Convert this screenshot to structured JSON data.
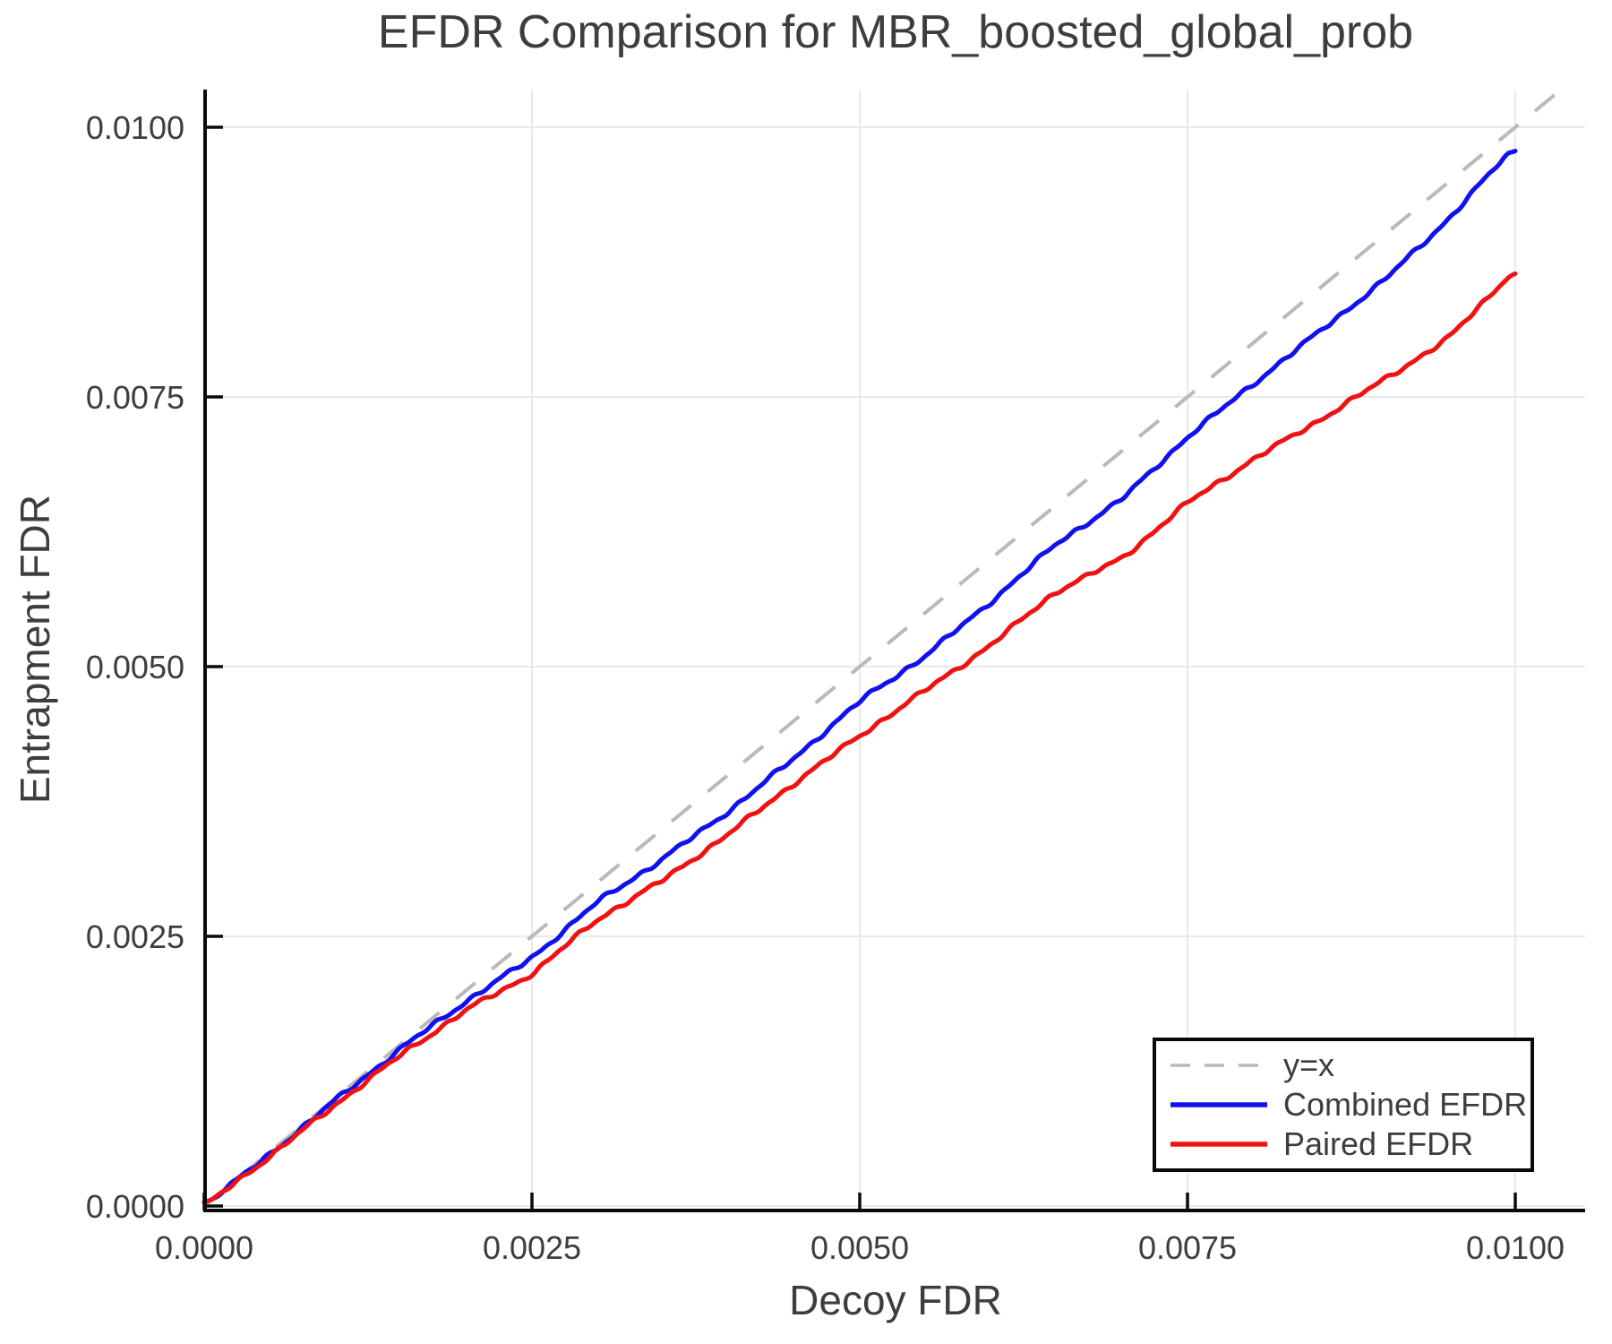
{
  "chart_data": {
    "type": "line",
    "title": "EFDR Comparison for MBR_boosted_global_prob",
    "xlabel": "Decoy FDR",
    "ylabel": "Entrapment FDR",
    "xlim": [
      0,
      0.01053
    ],
    "ylim": [
      0,
      0.01035
    ],
    "grid": true,
    "x_ticks": [
      0.0,
      0.0025,
      0.005,
      0.0075,
      0.01
    ],
    "x_tick_labels": [
      "0.0000",
      "0.0025",
      "0.0050",
      "0.0075",
      "0.0100"
    ],
    "y_ticks": [
      0.0,
      0.0025,
      0.005,
      0.0075,
      0.01
    ],
    "y_tick_labels": [
      "0.0000",
      "0.0025",
      "0.0050",
      "0.0075",
      "0.0100"
    ],
    "colors": {
      "grid": "#e9e9e9",
      "axis": "#0a0a0a",
      "text": "#3d3d3d",
      "reference": "#b9b9b9",
      "combined": "#1111ee",
      "paired": "#f01212"
    },
    "reference_line": {
      "label": "y=x",
      "style": "dashed",
      "color": "#b9b9b9",
      "from": [
        0,
        0
      ],
      "to": [
        0.01035,
        0.01035
      ]
    },
    "legend": {
      "position": "lower right",
      "entries": [
        {
          "label": "y=x",
          "color": "#b9b9b9",
          "dash": true
        },
        {
          "label": "Combined EFDR",
          "color": "#1111ee",
          "dash": false
        },
        {
          "label": "Paired EFDR",
          "color": "#f01212",
          "dash": false
        }
      ]
    },
    "series": [
      {
        "name": "Combined EFDR",
        "color": "#1111ee",
        "style": "solid",
        "x": [
          0.0,
          0.0005,
          0.001,
          0.0015,
          0.002,
          0.0025,
          0.003,
          0.0035,
          0.004,
          0.0045,
          0.005,
          0.0055,
          0.006,
          0.0065,
          0.007,
          0.0075,
          0.008,
          0.0085,
          0.009,
          0.0095,
          0.01
        ],
        "y": [
          0.0,
          0.00048,
          0.00098,
          0.00146,
          0.0019,
          0.0023,
          0.00282,
          0.00322,
          0.00366,
          0.00415,
          0.00468,
          0.0051,
          0.0056,
          0.00614,
          0.00655,
          0.00713,
          0.00762,
          0.0081,
          0.00858,
          0.00916,
          0.00983
        ]
      },
      {
        "name": "Paired EFDR",
        "color": "#f01212",
        "style": "solid",
        "x": [
          0.0,
          0.0005,
          0.001,
          0.0015,
          0.002,
          0.0025,
          0.003,
          0.0035,
          0.004,
          0.0045,
          0.005,
          0.0055,
          0.006,
          0.0065,
          0.007,
          0.0075,
          0.008,
          0.0085,
          0.009,
          0.0095,
          0.01
        ],
        "y": [
          0.0,
          0.00046,
          0.00094,
          0.0014,
          0.00182,
          0.00215,
          0.00266,
          0.00302,
          0.00345,
          0.00392,
          0.00436,
          0.00478,
          0.0052,
          0.0057,
          0.006,
          0.00652,
          0.00692,
          0.00728,
          0.00766,
          0.00805,
          0.00869
        ]
      }
    ]
  }
}
